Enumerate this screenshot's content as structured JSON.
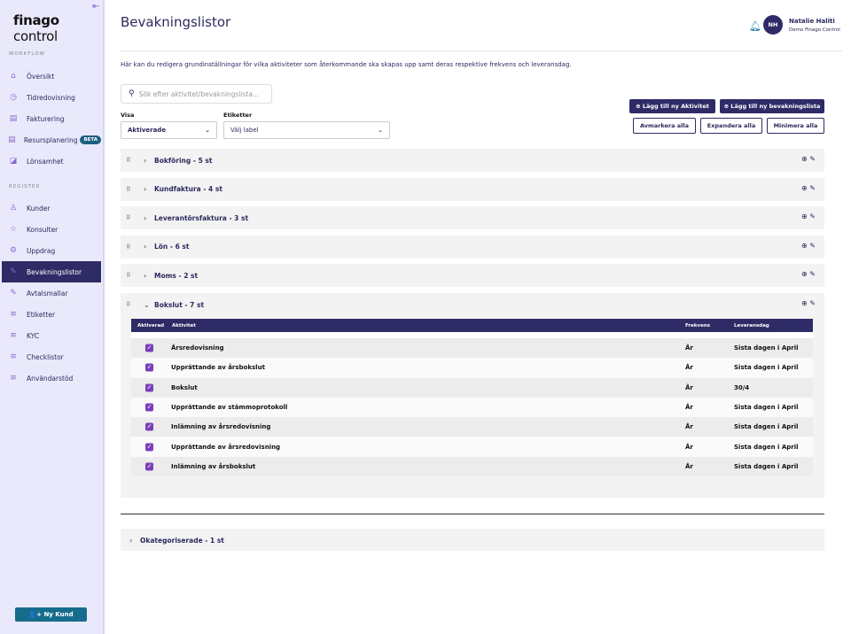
{
  "sidebar": {
    "logo": "finago",
    "logo2": " control",
    "workflow_label": "WORKFLOW",
    "register_label": "REGISTER",
    "workflow": [
      {
        "label": "Översikt",
        "icon": "home-icon"
      },
      {
        "label": "Tidredovisning",
        "icon": "clock-icon"
      },
      {
        "label": "Fakturering",
        "icon": "invoice-icon"
      },
      {
        "label": "Resursplanering",
        "icon": "document-icon",
        "badge": "BETA"
      },
      {
        "label": "Lönsamhet",
        "icon": "chart-icon"
      }
    ],
    "register": [
      {
        "label": "Kunder",
        "icon": "user-icon"
      },
      {
        "label": "Konsulter",
        "icon": "star-icon"
      },
      {
        "label": "Uppdrag",
        "icon": "gear-icon"
      },
      {
        "label": "Bevakningslistor",
        "icon": "pen-icon",
        "active": true
      },
      {
        "label": "Avtalsmallar",
        "icon": "pen-icon"
      },
      {
        "label": "Etiketter",
        "icon": "list-icon"
      },
      {
        "label": "KYC",
        "icon": "list-icon"
      },
      {
        "label": "Checklistor",
        "icon": "list-icon"
      },
      {
        "label": "Användarstöd",
        "icon": "list-icon"
      }
    ],
    "new_customer": "Ny Kund"
  },
  "header": {
    "title": "Bevakningslistor",
    "user_name": "Natalie Haliti",
    "user_org": "Demo Finago Control",
    "initials": "NH"
  },
  "main": {
    "description": "Här kan du redigera grundinställningar för vilka aktiviteter som återkommande ska skapas upp samt deras respektive frekvens och leveransdag.",
    "search_placeholder": "Sök efter aktivitet/bevakningslista...",
    "visa_label": "Visa",
    "visa_value": "Aktiverade",
    "etiketter_label": "Etiketter",
    "etiketter_value": "Välj label",
    "buttons": {
      "add_activity": "Lägg till ny Aktivitet",
      "add_list": "Lägg till ny bevakningslista",
      "unmark_all": "Avmarkera alla",
      "expand_all": "Expandera alla",
      "minimize_all": "Minimera alla"
    },
    "groups": [
      "Bokföring - 5 st",
      "Kundfaktura - 4 st",
      "Leverantörsfaktura - 3 st",
      "Lön - 6 st",
      "Moms - 2 st"
    ],
    "expanded": {
      "title": "Bokslut - 7 st",
      "columns": [
        "Aktiverad",
        "Aktivitet",
        "Frekvens",
        "Leveransdag"
      ],
      "rows": [
        {
          "aktivitet": "Årsredovisning",
          "frekvens": "År",
          "leveransdag": "Sista dagen i April"
        },
        {
          "aktivitet": "Upprättande av årsbokslut",
          "frekvens": "År",
          "leveransdag": "Sista dagen i April"
        },
        {
          "aktivitet": "Bokslut",
          "frekvens": "År",
          "leveransdag": "30/4"
        },
        {
          "aktivitet": "Upprättande av stämmoprotokoll",
          "frekvens": "År",
          "leveransdag": "Sista dagen i April"
        },
        {
          "aktivitet": "Inlämning av årsredovisning",
          "frekvens": "År",
          "leveransdag": "Sista dagen i April"
        },
        {
          "aktivitet": "Upprättande av årsredovisning",
          "frekvens": "År",
          "leveransdag": "Sista dagen i April"
        },
        {
          "aktivitet": "Inlämning av årsbokslut",
          "frekvens": "År",
          "leveransdag": "Sista dagen i April"
        }
      ]
    },
    "uncategorized": "Okategoriserade - 1 st"
  },
  "colors": {
    "primary": "#2f2b66",
    "teal": "#166c8c",
    "checkbox": "#7a3fb8",
    "sidebar_bg": "#e9e9fb"
  }
}
